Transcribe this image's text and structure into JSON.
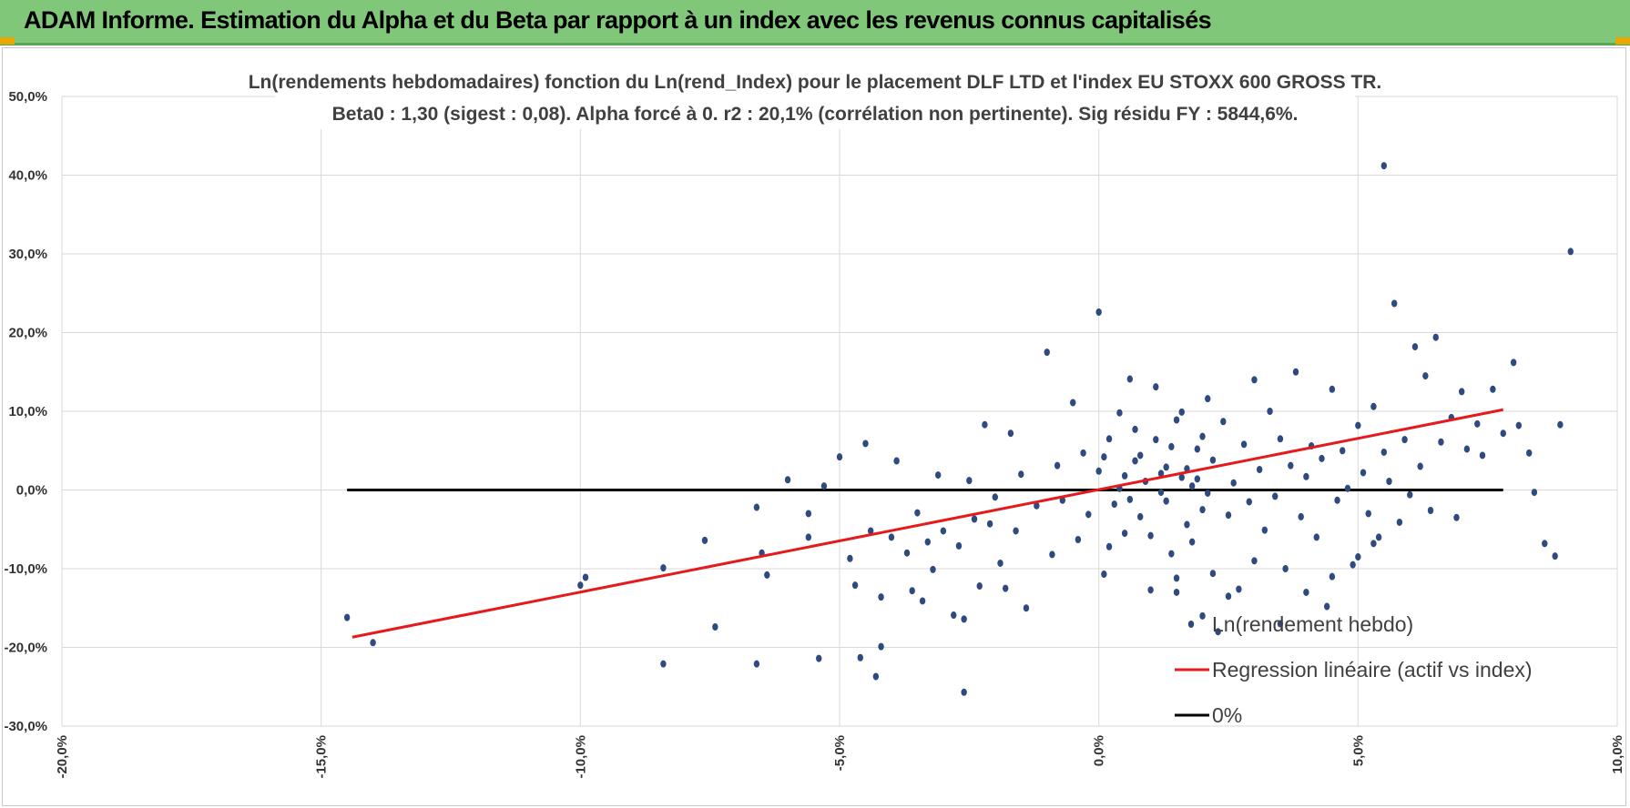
{
  "banner": {
    "title": "ADAM Informe. Estimation du Alpha et du Beta par rapport à un index avec les revenus connus capitalisés",
    "color": "#80c77a",
    "corner_color": "#e8a800"
  },
  "chart_data": {
    "type": "scatter",
    "title": "Ln(rendements hebdomadaires) fonction du Ln(rend_Index) pour le placement DLF LTD et l'index EU STOXX 600 GROSS TR.",
    "subtitle": "Beta0 : 1,30 (sigest : 0,08).  Alpha forcé à 0. r2 : 20,1% (corrélation non pertinente). Sig résidu FY : 5844,6%.",
    "xlabel": "",
    "ylabel": "",
    "xlim": [
      -0.2,
      0.1
    ],
    "ylim": [
      -0.3,
      0.5
    ],
    "x_ticks": [
      -0.2,
      -0.15,
      -0.1,
      -0.05,
      0.0,
      0.05,
      0.1
    ],
    "x_tick_labels": [
      "-20,0%",
      "-15,0%",
      "-10,0%",
      "-5,0%",
      "0,0%",
      "5,0%",
      "10,0%"
    ],
    "y_ticks": [
      -0.3,
      -0.2,
      -0.1,
      0.0,
      0.1,
      0.2,
      0.3,
      0.4,
      0.5
    ],
    "y_tick_labels": [
      "-30,0%",
      "-20,0%",
      "-10,0%",
      "0,0%",
      "10,0%",
      "20,0%",
      "30,0%",
      "40,0%",
      "50,0%"
    ],
    "grid": true,
    "legend_position": "bottom-right",
    "colors": {
      "points": "#2e4a7e",
      "regression": "#e41a1c",
      "zero": "#000000",
      "grid": "#d9d9d9"
    },
    "series": [
      {
        "name": "Ln(rendement hebdo)",
        "kind": "scatter",
        "points": [
          [
            -0.145,
            -0.162
          ],
          [
            -0.14,
            -0.194
          ],
          [
            -0.1,
            -0.121
          ],
          [
            -0.099,
            -0.111
          ],
          [
            -0.084,
            -0.221
          ],
          [
            -0.084,
            -0.099
          ],
          [
            -0.076,
            -0.064
          ],
          [
            -0.074,
            -0.174
          ],
          [
            -0.066,
            -0.221
          ],
          [
            -0.066,
            -0.022
          ],
          [
            -0.065,
            -0.08
          ],
          [
            -0.064,
            -0.108
          ],
          [
            -0.06,
            0.013
          ],
          [
            -0.056,
            -0.03
          ],
          [
            -0.056,
            -0.06
          ],
          [
            -0.054,
            -0.214
          ],
          [
            -0.053,
            0.005
          ],
          [
            -0.05,
            0.042
          ],
          [
            -0.048,
            -0.087
          ],
          [
            -0.047,
            -0.121
          ],
          [
            -0.046,
            -0.213
          ],
          [
            -0.045,
            0.059
          ],
          [
            -0.044,
            -0.052
          ],
          [
            -0.043,
            -0.237
          ],
          [
            -0.042,
            -0.136
          ],
          [
            -0.042,
            -0.199
          ],
          [
            -0.04,
            -0.06
          ],
          [
            -0.039,
            0.037
          ],
          [
            -0.037,
            -0.08
          ],
          [
            -0.036,
            -0.128
          ],
          [
            -0.035,
            -0.029
          ],
          [
            -0.034,
            -0.141
          ],
          [
            -0.033,
            -0.066
          ],
          [
            -0.032,
            -0.101
          ],
          [
            -0.031,
            0.019
          ],
          [
            -0.03,
            -0.052
          ],
          [
            -0.028,
            -0.159
          ],
          [
            -0.027,
            -0.071
          ],
          [
            -0.026,
            -0.257
          ],
          [
            -0.026,
            -0.164
          ],
          [
            -0.025,
            0.012
          ],
          [
            -0.024,
            -0.037
          ],
          [
            -0.023,
            -0.122
          ],
          [
            -0.022,
            0.083
          ],
          [
            -0.021,
            -0.043
          ],
          [
            -0.02,
            -0.009
          ],
          [
            -0.019,
            -0.093
          ],
          [
            -0.018,
            -0.125
          ],
          [
            -0.017,
            0.072
          ],
          [
            -0.016,
            -0.052
          ],
          [
            -0.015,
            0.02
          ],
          [
            -0.014,
            -0.15
          ],
          [
            -0.012,
            -0.02
          ],
          [
            -0.01,
            0.175
          ],
          [
            -0.009,
            -0.082
          ],
          [
            -0.008,
            0.031
          ],
          [
            -0.007,
            -0.013
          ],
          [
            -0.005,
            0.111
          ],
          [
            -0.004,
            -0.063
          ],
          [
            -0.003,
            0.047
          ],
          [
            -0.002,
            -0.031
          ],
          [
            0.0,
            0.024
          ],
          [
            0.001,
            -0.107
          ],
          [
            0.002,
            0.065
          ],
          [
            0.003,
            -0.018
          ],
          [
            0.004,
            0.002
          ],
          [
            0.005,
            -0.055
          ],
          [
            0.006,
            0.141
          ],
          [
            0.007,
            0.037
          ],
          [
            0.008,
            -0.034
          ],
          [
            0.009,
            0.011
          ],
          [
            0.01,
            -0.127
          ],
          [
            0.011,
            0.064
          ],
          [
            0.012,
            -0.003
          ],
          [
            0.013,
            0.029
          ],
          [
            0.014,
            -0.081
          ],
          [
            0.015,
            0.089
          ],
          [
            0.016,
            0.016
          ],
          [
            0.017,
            -0.044
          ],
          [
            0.018,
            0.005
          ],
          [
            0.019,
            0.052
          ],
          [
            0.02,
            -0.025
          ],
          [
            0.021,
            0.116
          ],
          [
            0.022,
            -0.106
          ],
          [
            0.0,
            0.226
          ],
          [
            0.001,
            0.042
          ],
          [
            0.002,
            -0.072
          ],
          [
            0.004,
            0.098
          ],
          [
            0.005,
            0.018
          ],
          [
            0.006,
            -0.012
          ],
          [
            0.007,
            0.077
          ],
          [
            0.008,
            0.044
          ],
          [
            0.01,
            -0.058
          ],
          [
            0.011,
            0.131
          ],
          [
            0.012,
            0.021
          ],
          [
            0.013,
            -0.014
          ],
          [
            0.014,
            0.055
          ],
          [
            0.015,
            -0.112
          ],
          [
            0.016,
            0.099
          ],
          [
            0.017,
            0.027
          ],
          [
            0.018,
            -0.066
          ],
          [
            0.019,
            0.014
          ],
          [
            0.02,
            0.068
          ],
          [
            0.021,
            -0.004
          ],
          [
            0.022,
            0.038
          ],
          [
            0.023,
            -0.18
          ],
          [
            0.024,
            0.087
          ],
          [
            0.025,
            -0.032
          ],
          [
            0.026,
            0.009
          ],
          [
            0.027,
            -0.126
          ],
          [
            0.028,
            0.058
          ],
          [
            0.029,
            -0.015
          ],
          [
            0.03,
            0.14
          ],
          [
            0.031,
            0.026
          ],
          [
            0.032,
            -0.051
          ],
          [
            0.033,
            0.1
          ],
          [
            0.034,
            -0.008
          ],
          [
            0.035,
            0.065
          ],
          [
            0.036,
            -0.1
          ],
          [
            0.037,
            0.031
          ],
          [
            0.038,
            0.15
          ],
          [
            0.039,
            -0.034
          ],
          [
            0.04,
            0.017
          ],
          [
            0.041,
            0.056
          ],
          [
            0.042,
            -0.06
          ],
          [
            0.043,
            0.04
          ],
          [
            0.044,
            -0.148
          ],
          [
            0.045,
            0.128
          ],
          [
            0.046,
            -0.013
          ],
          [
            0.047,
            0.05
          ],
          [
            0.048,
            0.002
          ],
          [
            0.049,
            -0.095
          ],
          [
            0.05,
            0.082
          ],
          [
            0.051,
            0.022
          ],
          [
            0.052,
            -0.03
          ],
          [
            0.053,
            0.106
          ],
          [
            0.054,
            -0.06
          ],
          [
            0.055,
            0.048
          ],
          [
            0.056,
            0.011
          ],
          [
            0.057,
            0.237
          ],
          [
            0.058,
            -0.041
          ],
          [
            0.059,
            0.064
          ],
          [
            0.06,
            -0.006
          ],
          [
            0.061,
            0.182
          ],
          [
            0.062,
            0.03
          ],
          [
            0.063,
            0.145
          ],
          [
            0.064,
            -0.026
          ],
          [
            0.065,
            0.194
          ],
          [
            0.066,
            0.061
          ],
          [
            0.068,
            0.092
          ],
          [
            0.069,
            -0.035
          ],
          [
            0.07,
            0.125
          ],
          [
            0.071,
            0.052
          ],
          [
            0.073,
            0.084
          ],
          [
            0.074,
            0.044
          ],
          [
            0.076,
            0.128
          ],
          [
            0.078,
            0.072
          ],
          [
            0.08,
            0.162
          ],
          [
            0.081,
            0.082
          ],
          [
            0.083,
            0.047
          ],
          [
            0.084,
            -0.003
          ],
          [
            0.086,
            -0.068
          ],
          [
            0.088,
            -0.084
          ],
          [
            0.089,
            0.083
          ],
          [
            0.091,
            0.303
          ],
          [
            0.055,
            0.412
          ],
          [
            0.053,
            -0.068
          ],
          [
            0.05,
            -0.085
          ],
          [
            0.045,
            -0.11
          ],
          [
            0.04,
            -0.13
          ],
          [
            0.035,
            -0.17
          ],
          [
            0.03,
            -0.09
          ],
          [
            0.025,
            -0.135
          ],
          [
            0.02,
            -0.16
          ],
          [
            0.015,
            -0.13
          ]
        ]
      },
      {
        "name": "Regression linéaire (actif vs index)",
        "kind": "line",
        "x": [
          -0.144,
          0.078
        ],
        "y": [
          -0.187,
          0.102
        ]
      },
      {
        "name": "0%",
        "kind": "line",
        "x": [
          -0.145,
          0.078
        ],
        "y": [
          0.0,
          0.0
        ]
      }
    ]
  }
}
